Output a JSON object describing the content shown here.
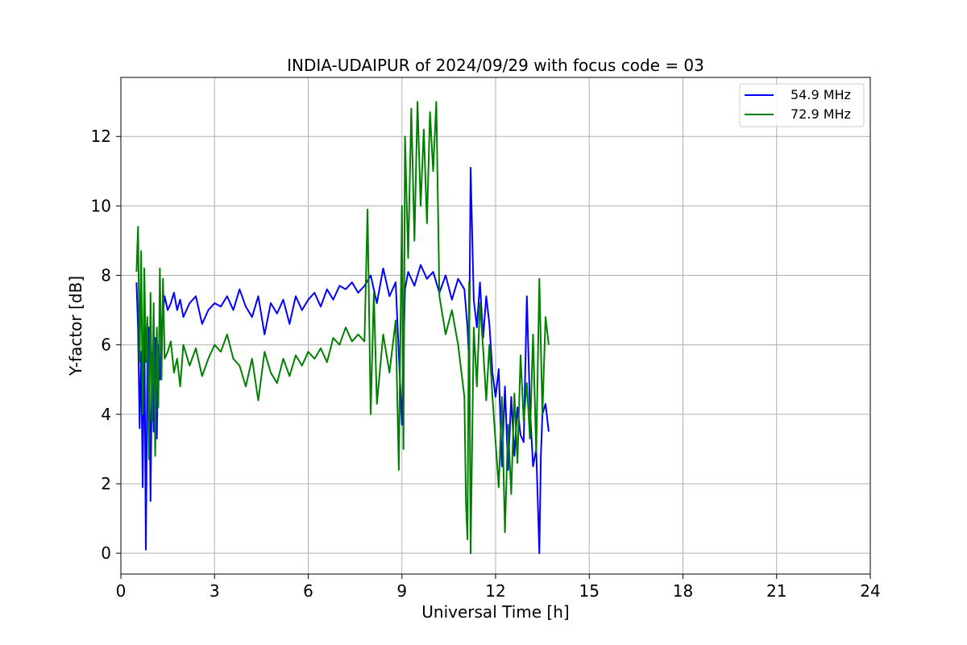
{
  "chart_data": {
    "type": "line",
    "title": "INDIA-UDAIPUR of 2024/09/29 with focus code = 03",
    "xlabel": "Universal Time [h]",
    "ylabel": "Y-factor [dB]",
    "xlim": [
      0,
      24
    ],
    "ylim": [
      -0.6,
      13.7
    ],
    "xticks": [
      0,
      3,
      6,
      9,
      12,
      15,
      18,
      21,
      24
    ],
    "yticks": [
      0,
      2,
      4,
      6,
      8,
      10,
      12
    ],
    "grid": true,
    "legend_position": "top-right",
    "series": [
      {
        "name": "54.9 MHz",
        "color": "#0000ff",
        "x": [
          0.5,
          0.55,
          0.6,
          0.65,
          0.7,
          0.75,
          0.8,
          0.85,
          0.9,
          0.95,
          1.0,
          1.05,
          1.1,
          1.15,
          1.2,
          1.25,
          1.3,
          1.4,
          1.5,
          1.6,
          1.7,
          1.8,
          1.9,
          2.0,
          2.2,
          2.4,
          2.6,
          2.8,
          3.0,
          3.2,
          3.4,
          3.6,
          3.8,
          4.0,
          4.2,
          4.4,
          4.6,
          4.8,
          5.0,
          5.2,
          5.4,
          5.6,
          5.8,
          6.0,
          6.2,
          6.4,
          6.6,
          6.8,
          7.0,
          7.2,
          7.4,
          7.6,
          7.8,
          8.0,
          8.2,
          8.4,
          8.6,
          8.8,
          9.0,
          9.1,
          9.2,
          9.4,
          9.6,
          9.8,
          10.0,
          10.2,
          10.4,
          10.6,
          10.8,
          11.0,
          11.1,
          11.15,
          11.2,
          11.3,
          11.4,
          11.5,
          11.6,
          11.7,
          11.8,
          11.9,
          12.0,
          12.1,
          12.2,
          12.3,
          12.4,
          12.5,
          12.6,
          12.7,
          12.8,
          12.9,
          13.0,
          13.1,
          13.2,
          13.3,
          13.4,
          13.45,
          13.5,
          13.6,
          13.7
        ],
        "y": [
          7.8,
          6.5,
          3.6,
          5.8,
          1.9,
          6.8,
          0.1,
          5.5,
          6.5,
          1.5,
          5.8,
          3.5,
          6.2,
          3.3,
          6.0,
          5.0,
          6.5,
          7.4,
          7.0,
          7.2,
          7.5,
          7.0,
          7.3,
          6.8,
          7.2,
          7.4,
          6.6,
          7.0,
          7.2,
          7.1,
          7.4,
          7.0,
          7.6,
          7.1,
          6.8,
          7.4,
          6.3,
          7.2,
          6.9,
          7.3,
          6.6,
          7.4,
          7.0,
          7.3,
          7.5,
          7.1,
          7.6,
          7.3,
          7.7,
          7.6,
          7.8,
          7.5,
          7.7,
          8.0,
          7.2,
          8.2,
          7.4,
          7.8,
          3.7,
          7.6,
          8.1,
          7.7,
          8.3,
          7.9,
          8.1,
          7.5,
          8.0,
          7.3,
          7.9,
          7.6,
          6.5,
          5.5,
          11.1,
          7.3,
          6.5,
          7.8,
          6.2,
          7.4,
          6.6,
          5.2,
          4.5,
          5.3,
          2.5,
          4.8,
          2.4,
          4.5,
          2.8,
          4.2,
          3.4,
          3.2,
          7.4,
          4.2,
          2.5,
          3.0,
          0.0,
          2.8,
          4.0,
          4.3,
          3.5
        ]
      },
      {
        "name": "72.9 MHz",
        "color": "#008000",
        "x": [
          0.5,
          0.55,
          0.6,
          0.65,
          0.7,
          0.75,
          0.8,
          0.85,
          0.9,
          0.95,
          1.0,
          1.05,
          1.1,
          1.15,
          1.2,
          1.25,
          1.3,
          1.35,
          1.4,
          1.5,
          1.6,
          1.7,
          1.8,
          1.9,
          2.0,
          2.2,
          2.4,
          2.6,
          2.8,
          3.0,
          3.2,
          3.4,
          3.6,
          3.8,
          4.0,
          4.2,
          4.4,
          4.6,
          4.8,
          5.0,
          5.2,
          5.4,
          5.6,
          5.8,
          6.0,
          6.2,
          6.4,
          6.6,
          6.8,
          7.0,
          7.2,
          7.4,
          7.6,
          7.8,
          7.9,
          8.0,
          8.1,
          8.2,
          8.4,
          8.6,
          8.8,
          8.9,
          9.0,
          9.05,
          9.1,
          9.2,
          9.3,
          9.4,
          9.5,
          9.6,
          9.7,
          9.8,
          9.9,
          10.0,
          10.1,
          10.2,
          10.4,
          10.6,
          10.8,
          11.0,
          11.05,
          11.1,
          11.15,
          11.2,
          11.3,
          11.4,
          11.5,
          11.6,
          11.7,
          11.8,
          11.9,
          12.0,
          12.1,
          12.2,
          12.3,
          12.4,
          12.5,
          12.6,
          12.7,
          12.8,
          12.9,
          13.0,
          13.1,
          13.2,
          13.3,
          13.4,
          13.5,
          13.6,
          13.7
        ],
        "y": [
          8.1,
          9.4,
          5.5,
          8.7,
          4.0,
          8.2,
          5.5,
          6.8,
          2.7,
          7.5,
          3.8,
          7.2,
          2.8,
          6.5,
          4.2,
          8.2,
          5.0,
          7.9,
          5.6,
          5.8,
          6.1,
          5.2,
          5.6,
          4.8,
          6.0,
          5.4,
          5.9,
          5.1,
          5.6,
          6.0,
          5.8,
          6.3,
          5.6,
          5.4,
          4.8,
          5.6,
          4.4,
          5.8,
          5.2,
          4.9,
          5.6,
          5.1,
          5.7,
          5.4,
          5.8,
          5.6,
          5.9,
          5.5,
          6.2,
          6.0,
          6.5,
          6.1,
          6.3,
          6.1,
          9.9,
          4.0,
          7.5,
          4.3,
          6.3,
          5.2,
          6.7,
          2.4,
          10.0,
          3.0,
          12.0,
          8.5,
          12.8,
          9.0,
          13.0,
          10.0,
          12.2,
          9.5,
          12.7,
          11.0,
          13.0,
          7.4,
          6.3,
          7.0,
          6.0,
          4.5,
          1.5,
          0.4,
          7.8,
          0.0,
          6.5,
          4.8,
          7.2,
          5.9,
          4.4,
          6.0,
          4.5,
          3.2,
          1.9,
          4.5,
          0.6,
          3.7,
          1.7,
          4.6,
          2.6,
          5.7,
          3.8,
          4.9,
          3.3,
          6.3,
          2.9,
          7.9,
          4.0,
          6.8,
          6.0
        ]
      }
    ]
  }
}
